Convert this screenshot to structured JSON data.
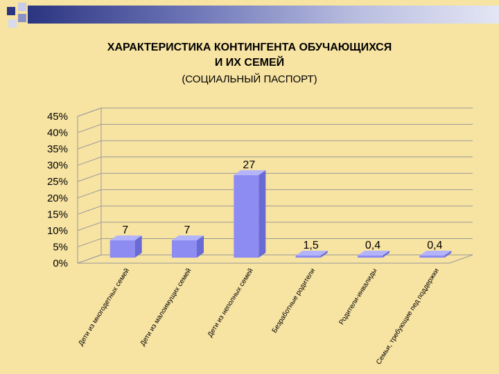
{
  "title_line1": "ХАРАКТЕРИСТИКА КОНТИНГЕНТА ОБУЧАЮЩИХСЯ",
  "title_line2": "И ИХ СЕМЕЙ",
  "subtitle": "(СОЦИАЛЬНЫЙ ПАСПОРТ)",
  "colors": {
    "background": "#F7E3A2",
    "bar": "#8C8CF2",
    "bar_side": "#6A6AD4",
    "bar_top": "#B4B4FA",
    "wall": "#9A9A9A"
  },
  "chart_data": {
    "type": "bar",
    "title": "ХАРАКТЕРИСТИКА КОНТИНГЕНТА ОБУЧАЮЩИХСЯ И ИХ СЕМЕЙ",
    "subtitle": "(СОЦИАЛЬНЫЙ ПАСПОРТ)",
    "three_d": true,
    "categories": [
      "Дети из многодетных семей",
      "Дети из малоимущих семей",
      "Дети из неполных семей",
      "Безработные родители",
      "Родители-инвалиды",
      "Семьи, требующие пед поддержки"
    ],
    "values": [
      7,
      7,
      27,
      1.5,
      0.4,
      0.4
    ],
    "data_labels": [
      "7",
      "7",
      "27",
      "1,5",
      "0,4",
      "0,4"
    ],
    "y_ticks": [
      "0%",
      "5%",
      "10%",
      "15%",
      "20%",
      "25%",
      "30%",
      "35%",
      "40%",
      "45%"
    ],
    "ylim": [
      0,
      45
    ],
    "ystep": 5,
    "grid": true,
    "legend": false
  }
}
